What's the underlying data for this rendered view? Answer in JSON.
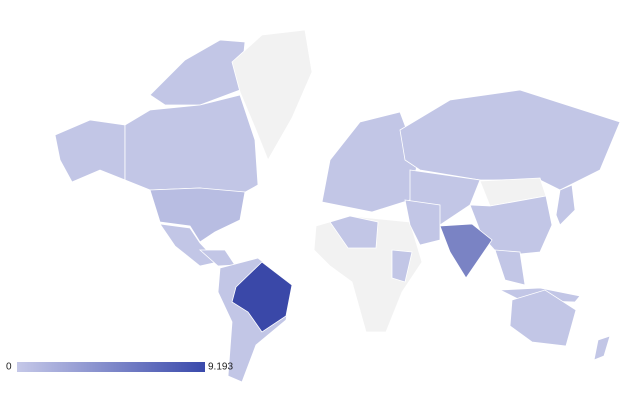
{
  "legend": {
    "min": 0,
    "max": 9.193,
    "min_color": "#c5c8e8",
    "max_color": "#3949ab"
  }
}
